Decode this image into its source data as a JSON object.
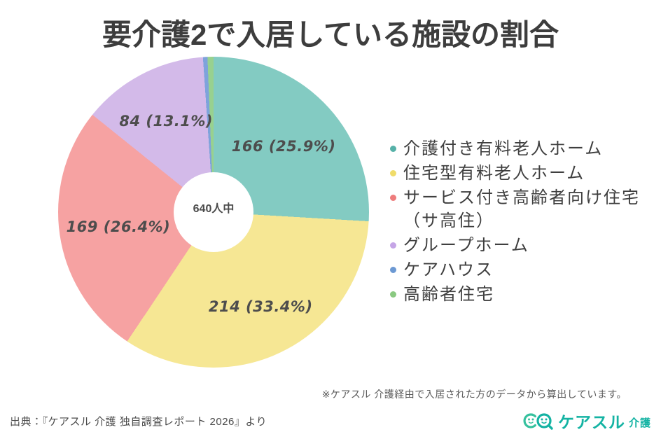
{
  "title": "要介護2で入居している施設の割合",
  "chart_data": {
    "type": "pie",
    "donut": true,
    "title": "要介護2で入居している施設の割合",
    "center_label": "640人中",
    "total": 640,
    "legend_position": "right",
    "start_angle_deg": 0,
    "direction": "clockwise",
    "series": [
      {
        "label": "介護付き有料老人ホーム",
        "value": 166,
        "percent": 25.9,
        "data_label": "166 (25.9%)",
        "color": "#83cbc2",
        "dot_color": "#56b1a8",
        "label_radius": 0.62
      },
      {
        "label": "住宅型有料老人ホーム",
        "value": 214,
        "percent": 33.4,
        "data_label": "214 (33.4%)",
        "color": "#f6e794",
        "dot_color": "#f0dc6a",
        "label_radius": 0.68
      },
      {
        "label": "サービス付き高齢者向け住宅（サ高住）",
        "value": 169,
        "percent": 26.4,
        "data_label": "169 (26.4%)",
        "color": "#f6a2a2",
        "dot_color": "#ee7c7c",
        "label_radius": 0.62
      },
      {
        "label": "グループホーム",
        "value": 84,
        "percent": 13.1,
        "data_label": "84 (13.1%)",
        "color": "#d3bae9",
        "dot_color": "#c5a5e6",
        "label_radius": 0.66
      },
      {
        "label": "ケアハウス",
        "value": 3,
        "estimated": true,
        "data_label": "",
        "color": "#7ea3db",
        "dot_color": "#6c99d3"
      },
      {
        "label": "高齢者住宅",
        "value": 4,
        "estimated": true,
        "data_label": "",
        "color": "#98d18f",
        "dot_color": "#8ac981"
      }
    ]
  },
  "footnote": "※ケアスル 介護経由で入居された方のデータから算出しています。",
  "source": "出典：『ケアスル 介護 独自調査レポート 2026』より",
  "logo": {
    "brand": "ケアスル",
    "suffix": "介護",
    "color": "#14b3a3"
  }
}
